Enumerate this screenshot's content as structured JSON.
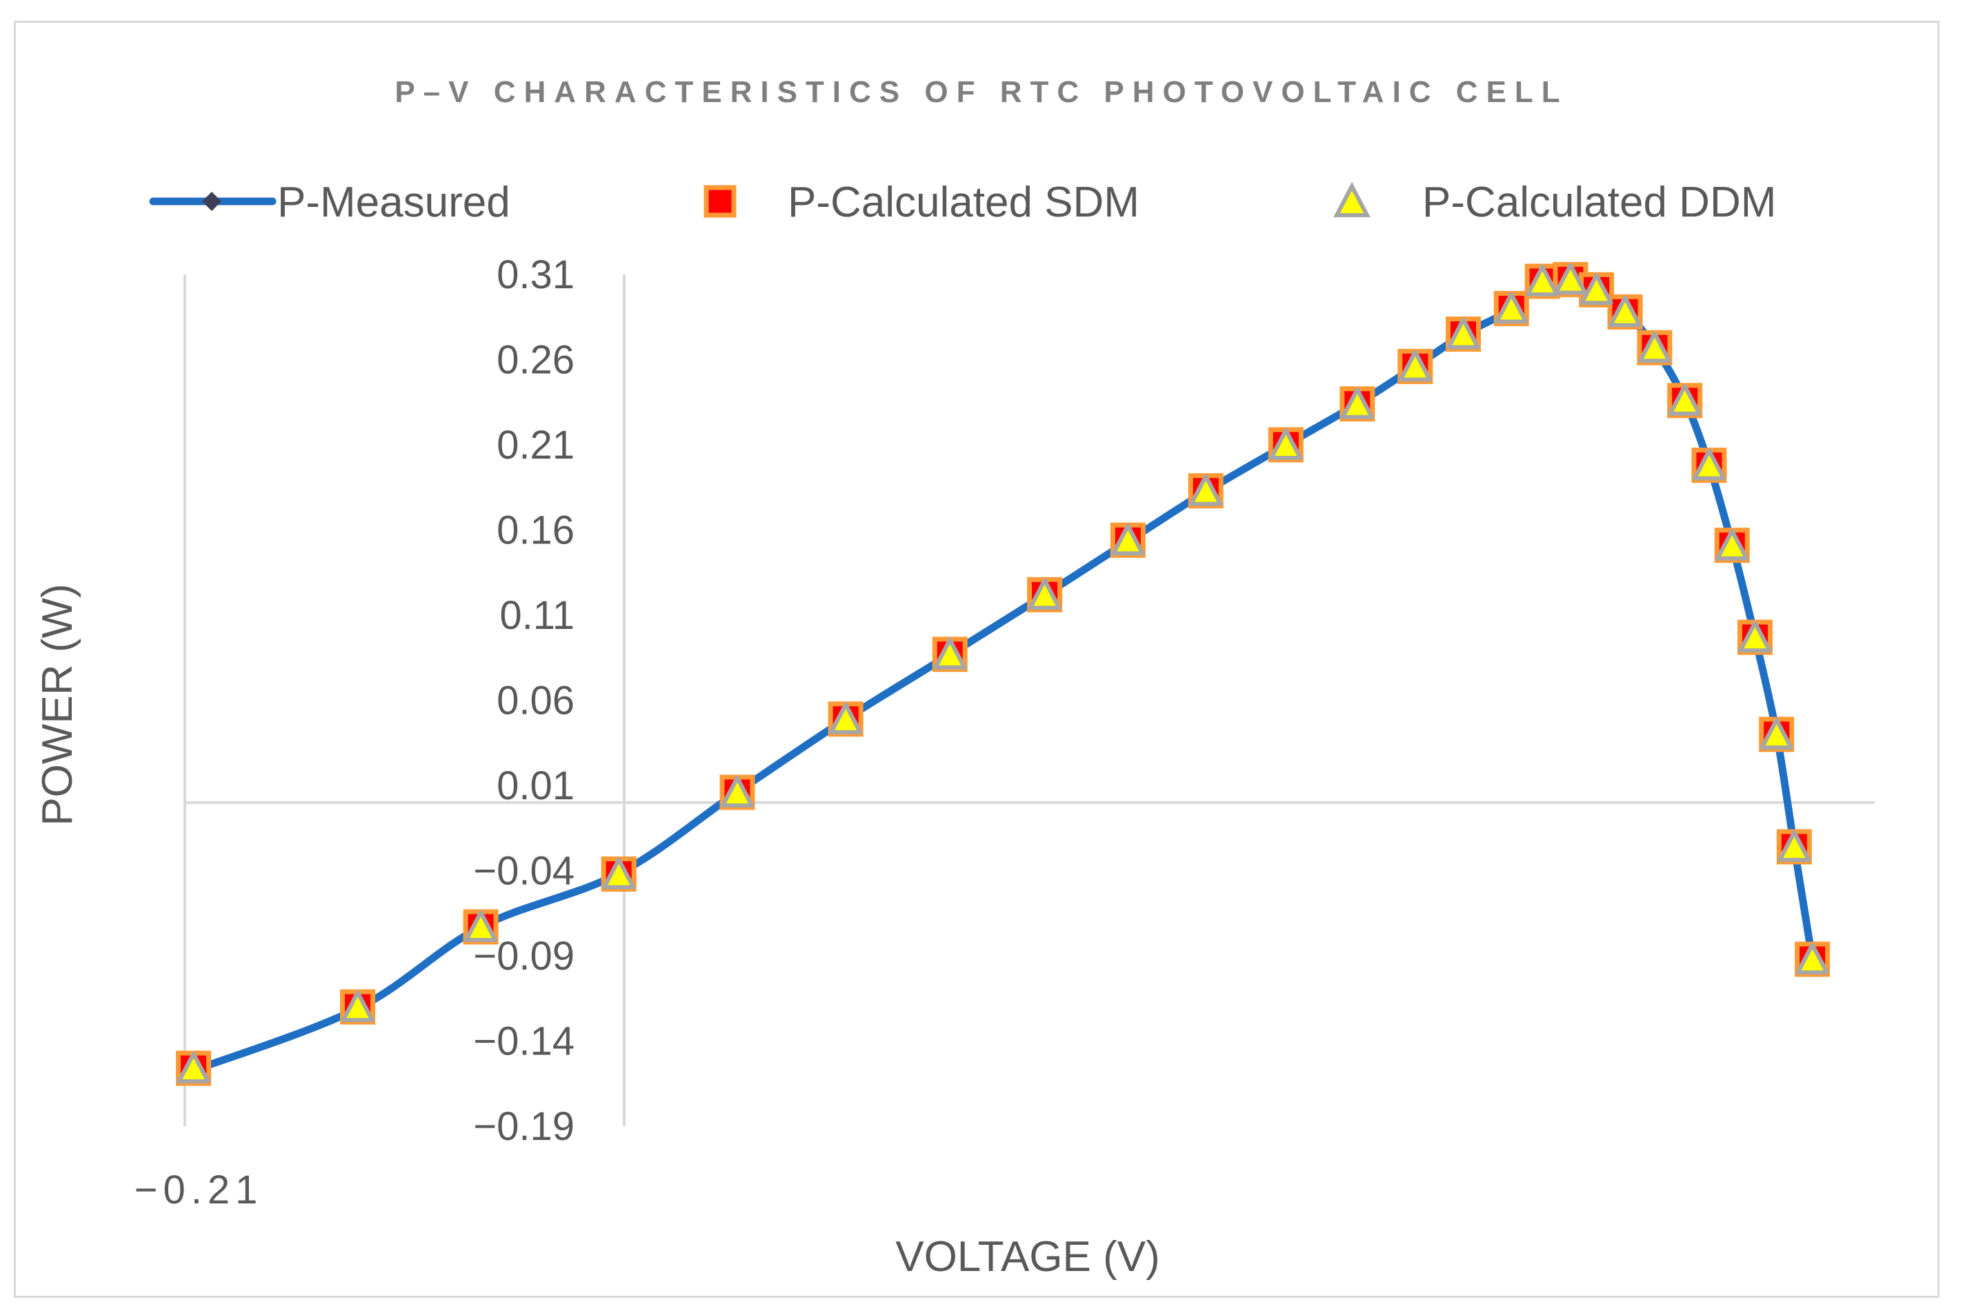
{
  "chart_data": {
    "type": "line",
    "title": "P–V CHARACTERISTICS OF RTC PHOTOVOLTAIC CELL",
    "xlabel": "VOLTAGE (V)",
    "ylabel": "POWER (W)",
    "x_tick_label": "−0.21",
    "y_tick_labels": [
      "0.31",
      "0.26",
      "0.21",
      "0.16",
      "0.11",
      "0.06",
      "0.01",
      "−0.04",
      "−0.09",
      "−0.14",
      "−0.19"
    ],
    "y_ticks": [
      0.31,
      0.26,
      0.21,
      0.16,
      0.11,
      0.06,
      0.01,
      -0.04,
      -0.09,
      -0.14,
      -0.19
    ],
    "xlim": [
      -0.21,
      0.63
    ],
    "ylim": [
      -0.19,
      0.31
    ],
    "grid": false,
    "legend_position": "top",
    "colors": {
      "measured_line": "#1f6fc4",
      "sdm_fill": "#ff0000",
      "sdm_edge": "#ff9933",
      "ddm_fill": "#ffff00",
      "ddm_edge": "#a6a6a6",
      "axis_line": "#d9d9d9"
    },
    "series": [
      {
        "name": "P-Measured",
        "marker": "diamond",
        "x": [
          -0.2057,
          -0.1241,
          -0.0629,
          0.0057,
          0.0646,
          0.1185,
          0.1703,
          0.2174,
          0.2588,
          0.2975,
          0.3373,
          0.3728,
          0.4016,
          0.4255,
          0.4494,
          0.4648,
          0.4788,
          0.4917,
          0.5059,
          0.5206,
          0.5356,
          0.5477,
          0.5591,
          0.5705,
          0.5812,
          0.59,
          0.599
        ],
        "y": [
          -0.1573,
          -0.1209,
          -0.073,
          -0.0417,
          0.0062,
          0.049,
          0.0869,
          0.1218,
          0.1533,
          0.1826,
          0.2099,
          0.234,
          0.256,
          0.2747,
          0.2896,
          0.306,
          0.3072,
          0.3011,
          0.2884,
          0.2673,
          0.2362,
          0.198,
          0.1513,
          0.0971,
          0.0403,
          -0.026,
          -0.0919
        ]
      },
      {
        "name": "P-Calculated SDM",
        "marker": "square",
        "x": [
          -0.2057,
          -0.1241,
          -0.0629,
          0.0057,
          0.0646,
          0.1185,
          0.1703,
          0.2174,
          0.2588,
          0.2975,
          0.3373,
          0.3728,
          0.4016,
          0.4255,
          0.4494,
          0.4648,
          0.4788,
          0.4917,
          0.5059,
          0.5206,
          0.5356,
          0.5477,
          0.5591,
          0.5705,
          0.5812,
          0.59,
          0.599
        ],
        "y": [
          -0.156,
          -0.12,
          -0.073,
          -0.042,
          0.006,
          0.049,
          0.087,
          0.122,
          0.154,
          0.183,
          0.21,
          0.234,
          0.256,
          0.275,
          0.29,
          0.306,
          0.307,
          0.301,
          0.288,
          0.267,
          0.236,
          0.198,
          0.151,
          0.097,
          0.04,
          -0.026,
          -0.092
        ]
      },
      {
        "name": "P-Calculated DDM",
        "marker": "triangle",
        "x": [
          -0.2057,
          -0.1241,
          -0.0629,
          0.0057,
          0.0646,
          0.1185,
          0.1703,
          0.2174,
          0.2588,
          0.2975,
          0.3373,
          0.3728,
          0.4016,
          0.4255,
          0.4494,
          0.4648,
          0.4788,
          0.4917,
          0.5059,
          0.5206,
          0.5356,
          0.5477,
          0.5591,
          0.5705,
          0.5812,
          0.59,
          0.599
        ],
        "y": [
          -0.156,
          -0.12,
          -0.073,
          -0.042,
          0.006,
          0.049,
          0.087,
          0.122,
          0.154,
          0.183,
          0.21,
          0.234,
          0.256,
          0.275,
          0.29,
          0.306,
          0.307,
          0.301,
          0.288,
          0.267,
          0.236,
          0.198,
          0.151,
          0.097,
          0.04,
          -0.026,
          -0.092
        ]
      }
    ]
  }
}
